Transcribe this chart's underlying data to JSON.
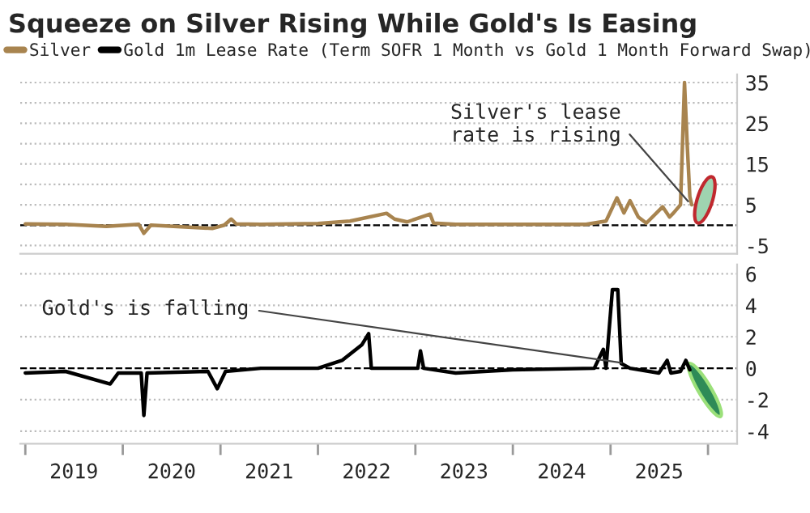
{
  "chart_data": [
    {
      "type": "line",
      "title": "Squeeze on Silver Rising While Gold's Is Easing",
      "legend": "top",
      "tick_labels": "y",
      "grid": "y",
      "xlim": [
        "2018-12-13",
        "2026-04-20"
      ],
      "ylim": [
        -7,
        37
      ],
      "yticks": [
        -5,
        {
          "value": 0,
          "label": null
        },
        5,
        {
          "value": 10,
          "label": null
        },
        15,
        {
          "value": 20,
          "label": null
        },
        25,
        {
          "value": 30,
          "label": null
        },
        35
      ],
      "ref_lines": [
        {
          "axis": "y",
          "value": 0,
          "color": "#000000",
          "line_style": "dashed"
        }
      ],
      "annotations": [
        {
          "text": "Silver's lease\nrate is rising",
          "x": "2025-10-30",
          "y": 5
        }
      ],
      "series": [
        {
          "name": "Silver",
          "color": "#a8844f",
          "x": [
            "2019-01-01",
            "2019-06-01",
            "2019-11-01",
            "2020-03-01",
            "2020-03-20",
            "2020-04-15",
            "2020-12-01",
            "2021-01-15",
            "2021-02-10",
            "2021-03-01",
            "2021-06-01",
            "2022-01-01",
            "2022-05-01",
            "2022-09-15",
            "2022-10-15",
            "2022-12-01",
            "2023-02-25",
            "2023-03-10",
            "2023-06-01",
            "2024-01-01",
            "2024-10-01",
            "2024-12-15",
            "2025-01-25",
            "2025-02-20",
            "2025-03-15",
            "2025-04-15",
            "2025-05-15",
            "2025-07-15",
            "2025-08-10",
            "2025-08-25",
            "2025-09-20",
            "2025-10-05",
            "2025-10-15",
            "2025-10-25",
            "2025-11-01"
          ],
          "values": [
            0.3,
            0.2,
            -0.3,
            0.2,
            -2,
            0,
            -0.8,
            0,
            1.5,
            0.3,
            0.2,
            0.4,
            1,
            2.9,
            1.5,
            0.8,
            2.7,
            0.5,
            0.2,
            0.2,
            0.2,
            1,
            6.7,
            3,
            6,
            2,
            0.5,
            4.5,
            2,
            3,
            5,
            35,
            20,
            7,
            5
          ]
        }
      ]
    },
    {
      "type": "line",
      "legend": "top",
      "grid": "y",
      "xlim": [
        "2018-12-13",
        "2026-04-20"
      ],
      "ylim": [
        -4.8,
        6.6
      ],
      "xticks": [
        {
          "value": "2019-01-01",
          "label": null
        },
        {
          "value": "2019-07-02",
          "label": "2019"
        },
        {
          "value": "2020-01-01",
          "label": null
        },
        {
          "value": "2020-07-02",
          "label": "2020"
        },
        {
          "value": "2021-01-01",
          "label": null
        },
        {
          "value": "2021-07-02",
          "label": "2021"
        },
        {
          "value": "2022-01-01",
          "label": null
        },
        {
          "value": "2022-07-02",
          "label": "2022"
        },
        {
          "value": "2023-01-01",
          "label": null
        },
        {
          "value": "2023-07-02",
          "label": "2023"
        },
        {
          "value": "2024-01-01",
          "label": null
        },
        {
          "value": "2024-07-02",
          "label": "2024"
        },
        {
          "value": "2025-01-01",
          "label": null
        },
        {
          "value": "2025-07-02",
          "label": "2025"
        },
        {
          "value": "2026-01-01",
          "label": null
        }
      ],
      "yticks": [
        -4,
        -2,
        0,
        2,
        4,
        6
      ],
      "ref_lines": [
        {
          "axis": "y",
          "value": 0,
          "color": "#000000",
          "line_style": "dashed"
        }
      ],
      "annotations": [
        {
          "text": "Gold's is falling",
          "x": "2025-02-28",
          "y": 0.3
        }
      ],
      "series": [
        {
          "name": "Gold 1m Lease Rate (Term SOFR 1 Month vs Gold 1 Month Forward Swap)",
          "color": "#000000",
          "x": [
            "2019-01-01",
            "2019-06-01",
            "2019-11-15",
            "2019-12-15",
            "2020-03-10",
            "2020-03-20",
            "2020-04-01",
            "2020-11-15",
            "2020-12-20",
            "2021-01-20",
            "2021-06-01",
            "2022-01-01",
            "2022-04-01",
            "2022-06-15",
            "2022-07-10",
            "2022-07-20",
            "2023-01-10",
            "2023-01-20",
            "2023-02-01",
            "2023-06-01",
            "2024-01-01",
            "2024-11-01",
            "2024-12-05",
            "2024-12-15",
            "2025-01-08",
            "2025-01-28",
            "2025-02-10",
            "2025-03-15",
            "2025-07-01",
            "2025-08-01",
            "2025-08-15",
            "2025-09-20",
            "2025-10-10",
            "2025-10-25"
          ],
          "values": [
            -0.3,
            -0.2,
            -1,
            -0.3,
            -0.3,
            -3,
            -0.3,
            -0.2,
            -1.3,
            -0.2,
            0,
            0,
            0.5,
            1.5,
            2.2,
            0,
            0,
            1.1,
            0,
            -0.3,
            -0.1,
            0,
            1.2,
            0,
            5,
            5,
            0.3,
            0,
            -0.3,
            0.5,
            -0.3,
            -0.2,
            0.5,
            -0.1
          ]
        }
      ]
    }
  ]
}
